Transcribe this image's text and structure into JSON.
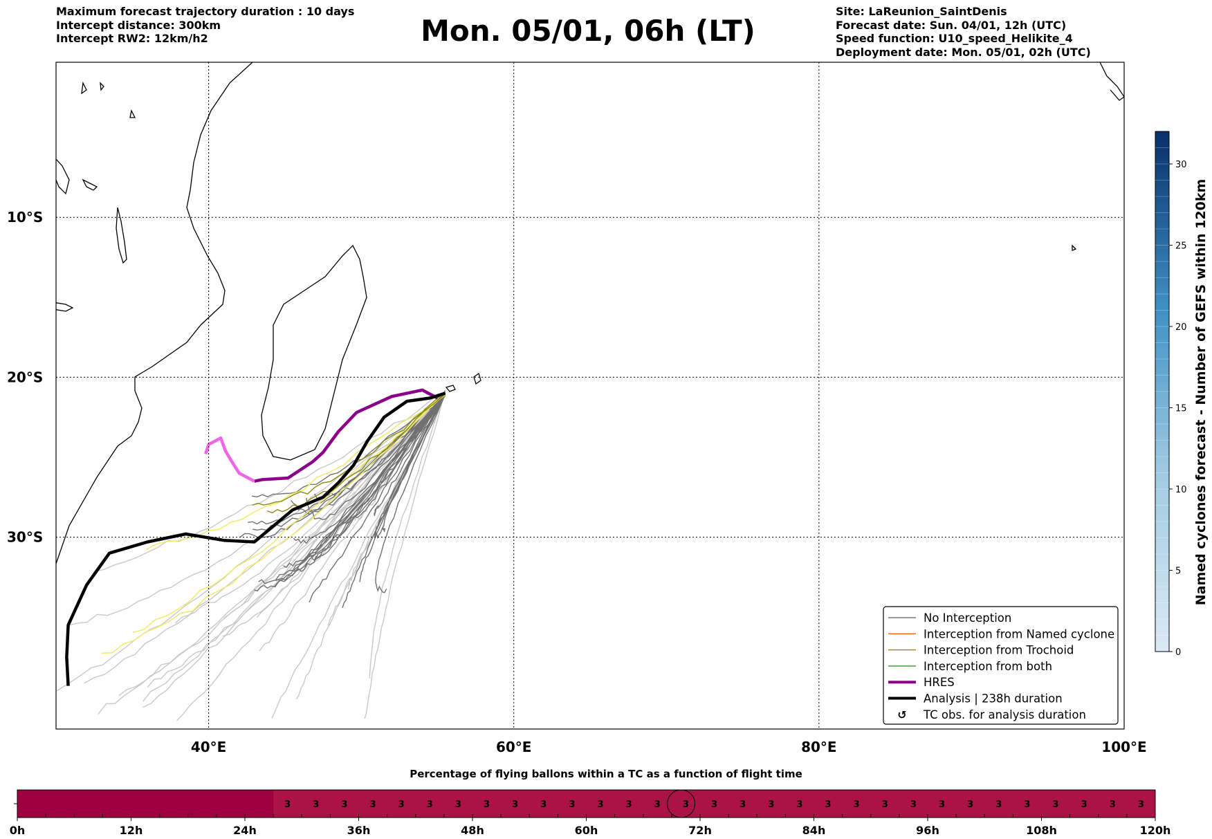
{
  "header": {
    "left_lines": [
      "Maximum forecast trajectory duration : 10 days",
      "Intercept distance: 300km",
      "Intercept RW2: 12km/h2"
    ],
    "title": "Mon. 05/01, 06h (LT)",
    "right_lines": [
      "Site: LaReunion_SaintDenis",
      "Forecast date: Sun. 04/01, 12h (UTC)",
      "Speed function: U10_speed_Helikite_4",
      "Deployment date: Mon. 05/01, 02h (UTC)"
    ]
  },
  "chart_data": [
    {
      "type": "map",
      "x_ticks": [
        {
          "value": 40,
          "label": "40°E"
        },
        {
          "value": 60,
          "label": "60°E"
        },
        {
          "value": 80,
          "label": "80°E"
        },
        {
          "value": 100,
          "label": "100°E"
        }
      ],
      "y_ticks": [
        {
          "value": -10,
          "label": "10°S"
        },
        {
          "value": -20,
          "label": "20°S"
        },
        {
          "value": -30,
          "label": "30°S"
        }
      ],
      "xlim": [
        30,
        100
      ],
      "ylim": [
        -42,
        -0.3
      ],
      "grid": true,
      "legend_position": "lower-right",
      "legend": [
        {
          "label": "No Interception",
          "color": "#777777",
          "style": "thin"
        },
        {
          "label": "Interception from Named cyclone",
          "color": "#ff5a1e",
          "style": "thin"
        },
        {
          "label": "Interception from Trochoid",
          "color": "#8a8a10",
          "style": "thin"
        },
        {
          "label": "Interception from both",
          "color": "#1f9e1f",
          "style": "thin"
        },
        {
          "label": "HRES",
          "color": "#8b008b",
          "style": "thick"
        },
        {
          "label": "Analysis | 238h duration",
          "color": "#000000",
          "style": "thick"
        },
        {
          "label": "TC obs. for analysis duration",
          "color": "#000000",
          "style": "symbol"
        }
      ],
      "analysis_track": [
        [
          55.5,
          -21.0
        ],
        [
          54.5,
          -21.3
        ],
        [
          53.0,
          -21.5
        ],
        [
          51.5,
          -22.5
        ],
        [
          50.4,
          -24.0
        ],
        [
          49.5,
          -25.5
        ],
        [
          48.5,
          -26.6
        ],
        [
          47.5,
          -27.5
        ],
        [
          45.5,
          -28.3
        ],
        [
          44.0,
          -29.5
        ],
        [
          43.0,
          -30.3
        ],
        [
          41.0,
          -30.2
        ],
        [
          38.5,
          -29.8
        ],
        [
          36.0,
          -30.3
        ],
        [
          33.5,
          -31.0
        ],
        [
          32.0,
          -33.0
        ],
        [
          30.8,
          -35.5
        ],
        [
          30.7,
          -37.5
        ],
        [
          30.8,
          -39.3
        ]
      ],
      "hres_track": [
        [
          55.0,
          -21.3
        ],
        [
          54.0,
          -20.8
        ],
        [
          52.0,
          -21.2
        ],
        [
          49.7,
          -22.2
        ],
        [
          48.5,
          -23.4
        ],
        [
          47.5,
          -24.7
        ],
        [
          46.8,
          -25.3
        ],
        [
          45.2,
          -26.3
        ],
        [
          43.5,
          -26.4
        ],
        [
          43.0,
          -26.5
        ],
        [
          42.0,
          -26.0
        ],
        [
          41.6,
          -25.4
        ],
        [
          41.1,
          -24.6
        ],
        [
          40.8,
          -23.8
        ],
        [
          40.0,
          -24.2
        ],
        [
          39.8,
          -24.8
        ]
      ],
      "colorbar": {
        "label": "Named cyclones forecast - Number of GEFS within 120km",
        "range": [
          0,
          32
        ],
        "ticks": [
          0,
          5,
          10,
          15,
          20,
          25,
          30
        ],
        "colors": [
          "#dbe9f6",
          "#08306b"
        ]
      }
    },
    {
      "type": "bar",
      "title": "Percentage of flying ballons within a TC as a function of flight time",
      "x_ticks": [
        "0h",
        "12h",
        "24h",
        "36h",
        "48h",
        "60h",
        "72h",
        "84h",
        "96h",
        "108h",
        "120h"
      ],
      "xlim": [
        0,
        120
      ],
      "step_hours": 3,
      "first_labeled_hour": 27,
      "values": [
        3,
        3,
        3,
        3,
        3,
        3,
        3,
        3,
        3,
        3,
        3,
        3,
        3,
        3,
        3,
        3,
        3,
        3,
        3,
        3,
        3,
        3,
        3,
        3,
        3,
        3,
        3,
        3,
        3,
        3,
        3
      ],
      "highlight_hour": 70,
      "colors": {
        "first_segment": "#9f0040",
        "rest": "#ab1245"
      }
    }
  ]
}
